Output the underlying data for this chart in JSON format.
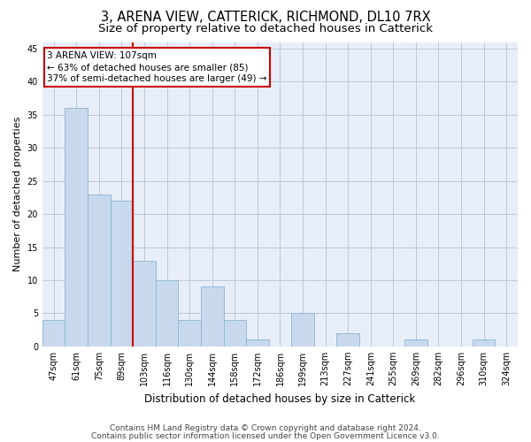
{
  "title": "3, ARENA VIEW, CATTERICK, RICHMOND, DL10 7RX",
  "subtitle": "Size of property relative to detached houses in Catterick",
  "xlabel": "Distribution of detached houses by size in Catterick",
  "ylabel": "Number of detached properties",
  "categories": [
    "47sqm",
    "61sqm",
    "75sqm",
    "89sqm",
    "103sqm",
    "116sqm",
    "130sqm",
    "144sqm",
    "158sqm",
    "172sqm",
    "186sqm",
    "199sqm",
    "213sqm",
    "227sqm",
    "241sqm",
    "255sqm",
    "269sqm",
    "282sqm",
    "296sqm",
    "310sqm",
    "324sqm"
  ],
  "values": [
    4,
    36,
    23,
    22,
    13,
    10,
    4,
    9,
    4,
    1,
    0,
    5,
    0,
    2,
    0,
    0,
    1,
    0,
    0,
    1,
    0
  ],
  "bar_color": "#c9d9ed",
  "bar_edge_color": "#8ab4d4",
  "grid_color": "#b8c8dc",
  "background_color": "#e8eef8",
  "vline_index": 4,
  "vline_color": "#cc0000",
  "annotation_line1": "3 ARENA VIEW: 107sqm",
  "annotation_line2": "← 63% of detached houses are smaller (85)",
  "annotation_line3": "37% of semi-detached houses are larger (49) →",
  "footer1": "Contains HM Land Registry data © Crown copyright and database right 2024.",
  "footer2": "Contains public sector information licensed under the Open Government Licence v3.0.",
  "ylim": [
    0,
    46
  ],
  "yticks": [
    0,
    5,
    10,
    15,
    20,
    25,
    30,
    35,
    40,
    45
  ],
  "title_fontsize": 10.5,
  "subtitle_fontsize": 9.5,
  "xlabel_fontsize": 8.5,
  "ylabel_fontsize": 8,
  "tick_fontsize": 7,
  "annotation_fontsize": 7.5,
  "footer_fontsize": 6.5
}
